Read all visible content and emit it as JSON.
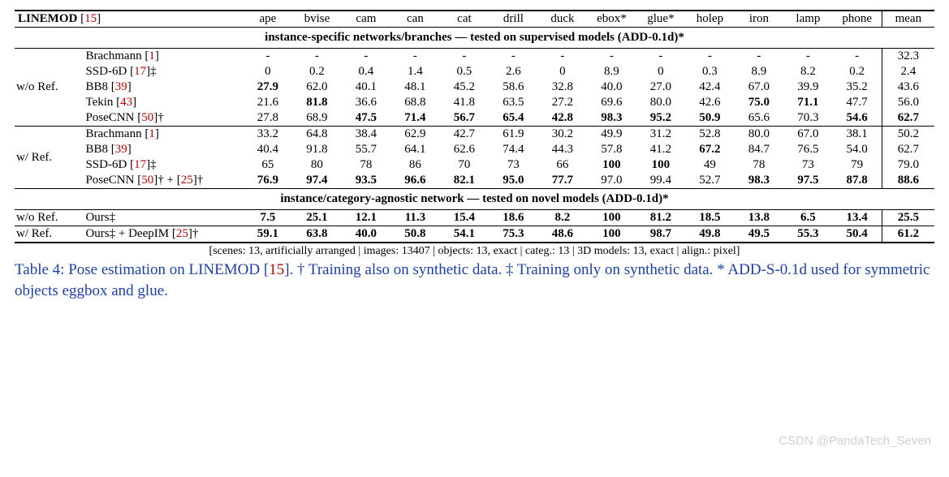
{
  "header": {
    "title_main": "LINEMOD",
    "title_cite": "15",
    "columns": [
      "ape",
      "bvise",
      "cam",
      "can",
      "cat",
      "drill",
      "duck",
      "ebox*",
      "glue*",
      "holep",
      "iron",
      "lamp",
      "phone"
    ],
    "mean": "mean"
  },
  "sections": [
    {
      "title": "instance-specific networks/branches — tested on supervised models  (ADD-0.1d)*",
      "blocks": [
        {
          "group": "w/o Ref.",
          "rows": [
            {
              "method": "Brachmann",
              "cite": "1",
              "suffix": "",
              "vals": [
                "-",
                "-",
                "-",
                "-",
                "-",
                "-",
                "-",
                "-",
                "-",
                "-",
                "-",
                "-",
                "-"
              ],
              "bold": [
                0,
                0,
                0,
                0,
                0,
                0,
                0,
                0,
                0,
                0,
                0,
                0,
                0
              ],
              "mean": "32.3",
              "mean_bold": 0
            },
            {
              "method": "SSD-6D",
              "cite": "17",
              "suffix": "‡",
              "vals": [
                "0",
                "0.2",
                "0.4",
                "1.4",
                "0.5",
                "2.6",
                "0",
                "8.9",
                "0",
                "0.3",
                "8.9",
                "8.2",
                "0.2"
              ],
              "bold": [
                0,
                0,
                0,
                0,
                0,
                0,
                0,
                0,
                0,
                0,
                0,
                0,
                0
              ],
              "mean": "2.4",
              "mean_bold": 0
            },
            {
              "method": "BB8",
              "cite": "39",
              "suffix": "",
              "vals": [
                "27.9",
                "62.0",
                "40.1",
                "48.1",
                "45.2",
                "58.6",
                "32.8",
                "40.0",
                "27.0",
                "42.4",
                "67.0",
                "39.9",
                "35.2"
              ],
              "bold": [
                1,
                0,
                0,
                0,
                0,
                0,
                0,
                0,
                0,
                0,
                0,
                0,
                0
              ],
              "mean": "43.6",
              "mean_bold": 0
            },
            {
              "method": "Tekin",
              "cite": "43",
              "suffix": "",
              "vals": [
                "21.6",
                "81.8",
                "36.6",
                "68.8",
                "41.8",
                "63.5",
                "27.2",
                "69.6",
                "80.0",
                "42.6",
                "75.0",
                "71.1",
                "47.7"
              ],
              "bold": [
                0,
                1,
                0,
                0,
                0,
                0,
                0,
                0,
                0,
                0,
                1,
                1,
                0
              ],
              "mean": "56.0",
              "mean_bold": 0
            },
            {
              "method": "PoseCNN",
              "cite": "50",
              "suffix": "†",
              "vals": [
                "27.8",
                "68.9",
                "47.5",
                "71.4",
                "56.7",
                "65.4",
                "42.8",
                "98.3",
                "95.2",
                "50.9",
                "65.6",
                "70.3",
                "54.6"
              ],
              "bold": [
                0,
                0,
                1,
                1,
                1,
                1,
                1,
                1,
                1,
                1,
                0,
                0,
                1
              ],
              "mean": "62.7",
              "mean_bold": 1
            }
          ]
        },
        {
          "group": "w/ Ref.",
          "rows": [
            {
              "method": "Brachmann",
              "cite": "1",
              "suffix": "",
              "vals": [
                "33.2",
                "64.8",
                "38.4",
                "62.9",
                "42.7",
                "61.9",
                "30.2",
                "49.9",
                "31.2",
                "52.8",
                "80.0",
                "67.0",
                "38.1"
              ],
              "bold": [
                0,
                0,
                0,
                0,
                0,
                0,
                0,
                0,
                0,
                0,
                0,
                0,
                0
              ],
              "mean": "50.2",
              "mean_bold": 0
            },
            {
              "method": "BB8",
              "cite": "39",
              "suffix": "",
              "vals": [
                "40.4",
                "91.8",
                "55.7",
                "64.1",
                "62.6",
                "74.4",
                "44.3",
                "57.8",
                "41.2",
                "67.2",
                "84.7",
                "76.5",
                "54.0"
              ],
              "bold": [
                0,
                0,
                0,
                0,
                0,
                0,
                0,
                0,
                0,
                1,
                0,
                0,
                0
              ],
              "mean": "62.7",
              "mean_bold": 0
            },
            {
              "method": "SSD-6D",
              "cite": "17",
              "suffix": "‡",
              "vals": [
                "65",
                "80",
                "78",
                "86",
                "70",
                "73",
                "66",
                "100",
                "100",
                "49",
                "78",
                "73",
                "79"
              ],
              "bold": [
                0,
                0,
                0,
                0,
                0,
                0,
                0,
                1,
                1,
                0,
                0,
                0,
                0
              ],
              "mean": "79.0",
              "mean_bold": 0
            },
            {
              "method": "PoseCNN",
              "cite": "50",
              "suffix": "† + ",
              "cite2": "25",
              "suffix2": "†",
              "vals": [
                "76.9",
                "97.4",
                "93.5",
                "96.6",
                "82.1",
                "95.0",
                "77.7",
                "97.0",
                "99.4",
                "52.7",
                "98.3",
                "97.5",
                "87.8"
              ],
              "bold": [
                1,
                1,
                1,
                1,
                1,
                1,
                1,
                0,
                0,
                0,
                1,
                1,
                1
              ],
              "mean": "88.6",
              "mean_bold": 1
            }
          ]
        }
      ]
    },
    {
      "title": "instance/category-agnostic network — tested on novel models  (ADD-0.1d)*",
      "blocks": [
        {
          "group": "w/o Ref.",
          "rows": [
            {
              "method": "Ours‡",
              "cite": "",
              "suffix": "",
              "vals": [
                "7.5",
                "25.1",
                "12.1",
                "11.3",
                "15.4",
                "18.6",
                "8.2",
                "100",
                "81.2",
                "18.5",
                "13.8",
                "6.5",
                "13.4"
              ],
              "bold": [
                1,
                1,
                1,
                1,
                1,
                1,
                1,
                1,
                1,
                1,
                1,
                1,
                1
              ],
              "mean": "25.5",
              "mean_bold": 1
            }
          ]
        },
        {
          "group": "w/ Ref.",
          "rows": [
            {
              "method": "Ours‡ + DeepIM",
              "cite": "25",
              "suffix": "†",
              "vals": [
                "59.1",
                "63.8",
                "40.0",
                "50.8",
                "54.1",
                "75.3",
                "48.6",
                "100",
                "98.7",
                "49.8",
                "49.5",
                "55.3",
                "50.4"
              ],
              "bold": [
                1,
                1,
                1,
                1,
                1,
                1,
                1,
                1,
                1,
                1,
                1,
                1,
                1
              ],
              "mean": "61.2",
              "mean_bold": 1
            }
          ]
        }
      ]
    }
  ],
  "meta": "[scenes: 13, artificially arranged | images: 13407 | objects: 13, exact | categ.: 13 | 3D models: 13, exact | align.: pixel]",
  "caption": {
    "prefix": "Table 4: Pose estimation on LINEMOD [",
    "cite": "15",
    "rest": "]. † Training also on synthetic data. ‡ Training only on synthetic data. * ADD-S-0.1d used for symmetric objects eggbox and glue."
  },
  "watermark": "CSDN @PandaTech_Seven",
  "style": {
    "cite_color": "#c00000",
    "caption_color": "#1a3fb0",
    "font_family": "Times New Roman"
  }
}
